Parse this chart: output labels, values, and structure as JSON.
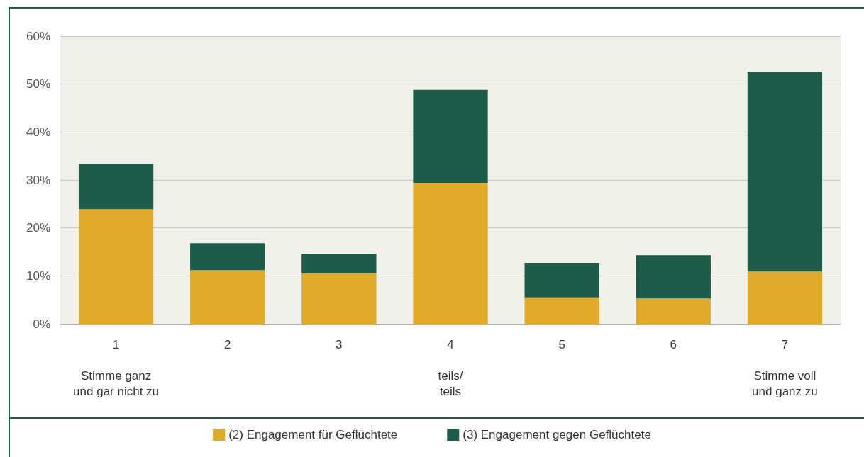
{
  "chart_data": {
    "type": "bar",
    "stacked": true,
    "categories": [
      "1\n\nStimme ganz\nund gar nicht zu",
      "2",
      "3",
      "4\n\nteils/\nteils",
      "5",
      "6",
      "7\n\nStimme voll\nund ganz zu"
    ],
    "series": [
      {
        "name": "(2) Engagement für Geflüchtete",
        "color": "#e0aa2b",
        "values": [
          23.9,
          11.2,
          10.5,
          29.4,
          5.5,
          5.3,
          10.9
        ]
      },
      {
        "name": "(3) Engagement gegen Geflüchtete",
        "color": "#1d5c48",
        "values": [
          9.5,
          5.6,
          4.1,
          19.4,
          7.2,
          9.0,
          41.7
        ]
      }
    ],
    "ylim": [
      0,
      60
    ],
    "yticks": [
      {
        "value": 0,
        "label": "0%"
      },
      {
        "value": 10,
        "label": "10%"
      },
      {
        "value": 20,
        "label": "20%"
      },
      {
        "value": 30,
        "label": "30%"
      },
      {
        "value": 40,
        "label": "40%"
      },
      {
        "value": 50,
        "label": "50%"
      },
      {
        "value": 60,
        "label": "60%"
      }
    ],
    "grid": "y",
    "legend": "bottom"
  }
}
